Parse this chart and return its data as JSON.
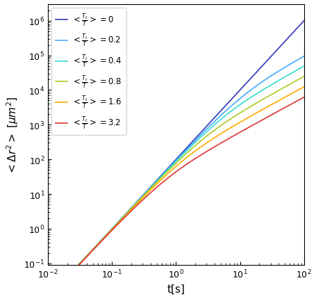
{
  "title": "",
  "xlabel": "t[s]",
  "ylabel": "$<\\Delta r^2>\\ [\\mu m^2]$",
  "xlim": [
    0.01,
    100
  ],
  "ylim": [
    0.09,
    3000000.0
  ],
  "series": [
    {
      "label": "$<\\frac{T_t}{T}> = 0$",
      "color": "#3333bb",
      "alpha_val": 0.0
    },
    {
      "label": "$<\\frac{T_t}{T}> = 0.2$",
      "color": "#44aaff",
      "alpha_val": 0.2
    },
    {
      "label": "$<\\frac{T_t}{T}> = 0.4$",
      "color": "#33ddcc",
      "alpha_val": 0.4
    },
    {
      "label": "$<\\frac{T_t}{T}> = 0.8$",
      "color": "#aacc22",
      "alpha_val": 0.8
    },
    {
      "label": "$<\\frac{T_t}{T}> = 1.6$",
      "color": "#ffaa00",
      "alpha_val": 1.6
    },
    {
      "label": "$<\\frac{T_t}{T}> = 3.2$",
      "color": "#dd3333",
      "alpha_val": 3.2
    }
  ],
  "t_start": 0.01,
  "t_end": 100,
  "n_points": 600,
  "v": 10.0,
  "tau_run": 1.0,
  "D": 0.01,
  "legend_loc": "upper left",
  "legend_fontsize": 8.5,
  "linewidth": 1.2
}
